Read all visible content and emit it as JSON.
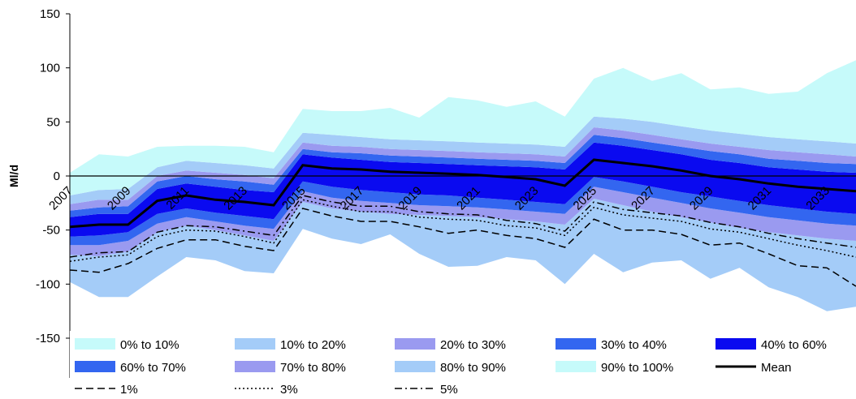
{
  "chart_data": {
    "type": "area",
    "title": "",
    "xlabel": "",
    "ylabel": "Ml/d",
    "ylim": [
      -150,
      150
    ],
    "yticks": [
      -150,
      -100,
      -50,
      0,
      50,
      100,
      150
    ],
    "xlim": [
      2007,
      2034
    ],
    "x": [
      2007,
      2008,
      2009,
      2010,
      2011,
      2012,
      2013,
      2014,
      2015,
      2016,
      2017,
      2018,
      2019,
      2020,
      2021,
      2022,
      2023,
      2024,
      2025,
      2026,
      2027,
      2028,
      2029,
      2030,
      2031,
      2032,
      2033,
      2034
    ],
    "xticks": [
      "2007",
      "2009",
      "2011",
      "2013",
      "2015",
      "2017",
      "2019",
      "2021",
      "2023",
      "2025",
      "2027",
      "2029",
      "2031",
      "2033"
    ],
    "grid": false,
    "legend_position": "bottom",
    "colors": {
      "b0_10": "#c6fafa",
      "b10_20": "#a4ccf8",
      "b20_30": "#9a9af0",
      "b30_40": "#3366f0",
      "b40_60": "#0a0af0",
      "mean": "#000000",
      "axis": "#000000"
    },
    "series": [
      {
        "name": "0% to 10%",
        "kind": "band",
        "color_key": "b0_10",
        "lower": [
          -98,
          -112,
          -112,
          -93,
          -75,
          -78,
          -88,
          -90,
          -49,
          -58,
          -63,
          -54,
          -72,
          -84,
          -83,
          -75,
          -78,
          -100,
          -72,
          -89,
          -80,
          -78,
          -95,
          -85,
          -103,
          -112,
          -125,
          -121
        ],
        "upper": [
          -98,
          -112,
          -112,
          -93,
          -75,
          -78,
          -88,
          -90,
          -49,
          -58,
          -63,
          -54,
          -72,
          -84,
          -83,
          -75,
          -78,
          -100,
          -72,
          -89,
          -80,
          -78,
          -95,
          -85,
          -103,
          -112,
          -125,
          -121
        ]
      },
      {
        "name": "10% to 20%",
        "kind": "band",
        "color_key": "b10_20",
        "lower": [
          -98,
          -112,
          -112,
          -93,
          -75,
          -78,
          -88,
          -90,
          -49,
          -58,
          -63,
          -54,
          -72,
          -84,
          -83,
          -75,
          -78,
          -100,
          -72,
          -89,
          -80,
          -78,
          -95,
          -85,
          -103,
          -112,
          -125,
          -121
        ],
        "upper": [
          -73,
          -74,
          -70,
          -52,
          -46,
          -50,
          -55,
          -60,
          -24,
          -30,
          -33,
          -35,
          -36,
          -37,
          -38,
          -40,
          -42,
          -45,
          -21,
          -27,
          -33,
          -38,
          -43,
          -48,
          -52,
          -55,
          -58,
          -60
        ]
      },
      {
        "name": "20% to 30%",
        "kind": "band",
        "color_key": "b20_30",
        "lower": [
          -73,
          -74,
          -70,
          -52,
          -46,
          -50,
          -55,
          -60,
          -24,
          -30,
          -33,
          -35,
          -36,
          -37,
          -38,
          -40,
          -42,
          -45,
          -21,
          -27,
          -33,
          -38,
          -43,
          -48,
          -52,
          -55,
          -58,
          -60
        ],
        "upper": [
          -64,
          -64,
          -60,
          -44,
          -38,
          -42,
          -46,
          -49,
          -14,
          -20,
          -23,
          -25,
          -27,
          -28,
          -29,
          -31,
          -33,
          -35,
          -10,
          -15,
          -20,
          -25,
          -30,
          -34,
          -38,
          -41,
          -44,
          -46
        ]
      },
      {
        "name": "30% to 40%",
        "kind": "band",
        "color_key": "b30_40",
        "lower": [
          -64,
          -64,
          -60,
          -44,
          -38,
          -42,
          -46,
          -49,
          -14,
          -20,
          -23,
          -25,
          -27,
          -28,
          -29,
          -31,
          -33,
          -35,
          -10,
          -15,
          -20,
          -25,
          -30,
          -34,
          -38,
          -41,
          -44,
          -46
        ],
        "upper": [
          -56,
          -55,
          -52,
          -35,
          -30,
          -34,
          -37,
          -40,
          -5,
          -10,
          -13,
          -15,
          -17,
          -18,
          -20,
          -22,
          -24,
          -26,
          -1,
          -5,
          -10,
          -15,
          -19,
          -23,
          -27,
          -30,
          -33,
          -35
        ]
      },
      {
        "name": "40% to 60%",
        "kind": "band",
        "color_key": "b40_60",
        "lower": [
          -56,
          -55,
          -52,
          -35,
          -30,
          -34,
          -37,
          -40,
          -5,
          -10,
          -13,
          -15,
          -17,
          -18,
          -20,
          -22,
          -24,
          -26,
          -1,
          -5,
          -10,
          -15,
          -19,
          -23,
          -27,
          -30,
          -33,
          -35
        ],
        "upper": [
          -38,
          -35,
          -35,
          -12,
          -7,
          -10,
          -13,
          -15,
          20,
          17,
          15,
          13,
          12,
          11,
          10,
          9,
          8,
          6,
          31,
          28,
          24,
          20,
          15,
          12,
          8,
          6,
          4,
          3
        ]
      },
      {
        "name": "60% to 70%",
        "kind": "band",
        "color_key": "b30_40",
        "lower": [
          -38,
          -35,
          -35,
          -12,
          -7,
          -10,
          -13,
          -15,
          20,
          17,
          15,
          13,
          12,
          11,
          10,
          9,
          8,
          6,
          31,
          28,
          24,
          20,
          15,
          12,
          8,
          6,
          4,
          3
        ],
        "upper": [
          -32,
          -29,
          -28,
          -5,
          0,
          -3,
          -5,
          -8,
          25,
          22,
          21,
          19,
          18,
          17,
          16,
          15,
          14,
          12,
          38,
          35,
          31,
          27,
          23,
          20,
          16,
          14,
          12,
          11
        ]
      },
      {
        "name": "70% to 80%",
        "kind": "band",
        "color_key": "b20_30",
        "lower": [
          -32,
          -29,
          -28,
          -5,
          0,
          -3,
          -5,
          -8,
          25,
          22,
          21,
          19,
          18,
          17,
          16,
          15,
          14,
          12,
          38,
          35,
          31,
          27,
          23,
          20,
          16,
          14,
          12,
          11
        ],
        "upper": [
          -26,
          -22,
          -22,
          0,
          5,
          3,
          1,
          -2,
          31,
          28,
          27,
          25,
          24,
          23,
          22,
          21,
          20,
          18,
          45,
          42,
          38,
          34,
          30,
          27,
          24,
          22,
          20,
          18
        ]
      },
      {
        "name": "80% to 90%",
        "kind": "band",
        "color_key": "b10_20",
        "lower": [
          -26,
          -22,
          -22,
          0,
          5,
          3,
          1,
          -2,
          31,
          28,
          27,
          25,
          24,
          23,
          22,
          21,
          20,
          18,
          45,
          42,
          38,
          34,
          30,
          27,
          24,
          22,
          20,
          18
        ],
        "upper": [
          -18,
          -13,
          -12,
          8,
          14,
          12,
          10,
          7,
          40,
          38,
          36,
          34,
          33,
          32,
          31,
          30,
          29,
          27,
          55,
          53,
          50,
          46,
          42,
          39,
          36,
          34,
          32,
          30
        ]
      },
      {
        "name": "90% to 100%",
        "kind": "band",
        "color_key": "b0_10",
        "lower": [
          -18,
          -13,
          -12,
          8,
          14,
          12,
          10,
          7,
          40,
          38,
          36,
          34,
          33,
          32,
          31,
          30,
          29,
          27,
          55,
          53,
          50,
          46,
          42,
          39,
          36,
          34,
          32,
          30
        ],
        "upper": [
          3,
          20,
          18,
          27,
          28,
          28,
          27,
          22,
          62,
          60,
          60,
          63,
          54,
          73,
          70,
          64,
          69,
          55,
          90,
          100,
          88,
          95,
          80,
          82,
          76,
          78,
          95,
          107
        ]
      },
      {
        "name": "Mean",
        "kind": "line",
        "dash": "solid",
        "values": [
          -47,
          -45,
          -45,
          -23,
          -18,
          -22,
          -24,
          -27,
          10,
          7,
          6,
          4,
          3,
          2,
          1,
          -1,
          -3,
          -9,
          15,
          12,
          9,
          5,
          0,
          -3,
          -7,
          -10,
          -12,
          -14
        ]
      },
      {
        "name": "1%",
        "kind": "line",
        "dash": "dashed",
        "values": [
          -87,
          -89,
          -81,
          -67,
          -59,
          -59,
          -65,
          -69,
          -30,
          -37,
          -42,
          -42,
          -47,
          -53,
          -50,
          -55,
          -58,
          -66,
          -40,
          -50,
          -50,
          -54,
          -64,
          -62,
          -72,
          -83,
          -85,
          -102
        ]
      },
      {
        "name": "3%",
        "kind": "line",
        "dash": "dotted",
        "values": [
          -79,
          -75,
          -73,
          -56,
          -50,
          -51,
          -56,
          -62,
          -22,
          -28,
          -33,
          -33,
          -38,
          -40,
          -41,
          -46,
          -48,
          -55,
          -29,
          -36,
          -39,
          -42,
          -49,
          -52,
          -58,
          -64,
          -69,
          -75
        ]
      },
      {
        "name": "5%",
        "kind": "line",
        "dash": "dashdot",
        "values": [
          -75,
          -71,
          -70,
          -52,
          -46,
          -47,
          -51,
          -55,
          -18,
          -24,
          -28,
          -28,
          -33,
          -35,
          -36,
          -41,
          -44,
          -51,
          -24,
          -31,
          -34,
          -37,
          -43,
          -47,
          -53,
          -58,
          -62,
          -66
        ]
      }
    ],
    "legend": [
      [
        {
          "label": "0% to 10%",
          "color_key": "b0_10",
          "type": "swatch"
        },
        {
          "label": "10% to 20%",
          "color_key": "b10_20",
          "type": "swatch"
        },
        {
          "label": "20% to 30%",
          "color_key": "b20_30",
          "type": "swatch"
        },
        {
          "label": "30% to 40%",
          "color_key": "b30_40",
          "type": "swatch"
        },
        {
          "label": "40% to 60%",
          "color_key": "b40_60",
          "type": "swatch"
        }
      ],
      [
        {
          "label": "60% to 70%",
          "color_key": "b30_40",
          "type": "swatch"
        },
        {
          "label": "70% to 80%",
          "color_key": "b20_30",
          "type": "swatch"
        },
        {
          "label": "80% to 90%",
          "color_key": "b10_20",
          "type": "swatch"
        },
        {
          "label": "90% to 100%",
          "color_key": "b0_10",
          "type": "swatch"
        },
        {
          "label": "Mean",
          "type": "line",
          "dash": "solid"
        }
      ],
      [
        {
          "label": "1%",
          "type": "line",
          "dash": "dashed"
        },
        {
          "label": "3%",
          "type": "line",
          "dash": "dotted"
        },
        {
          "label": "5%",
          "type": "line",
          "dash": "dashdot"
        }
      ]
    ]
  }
}
